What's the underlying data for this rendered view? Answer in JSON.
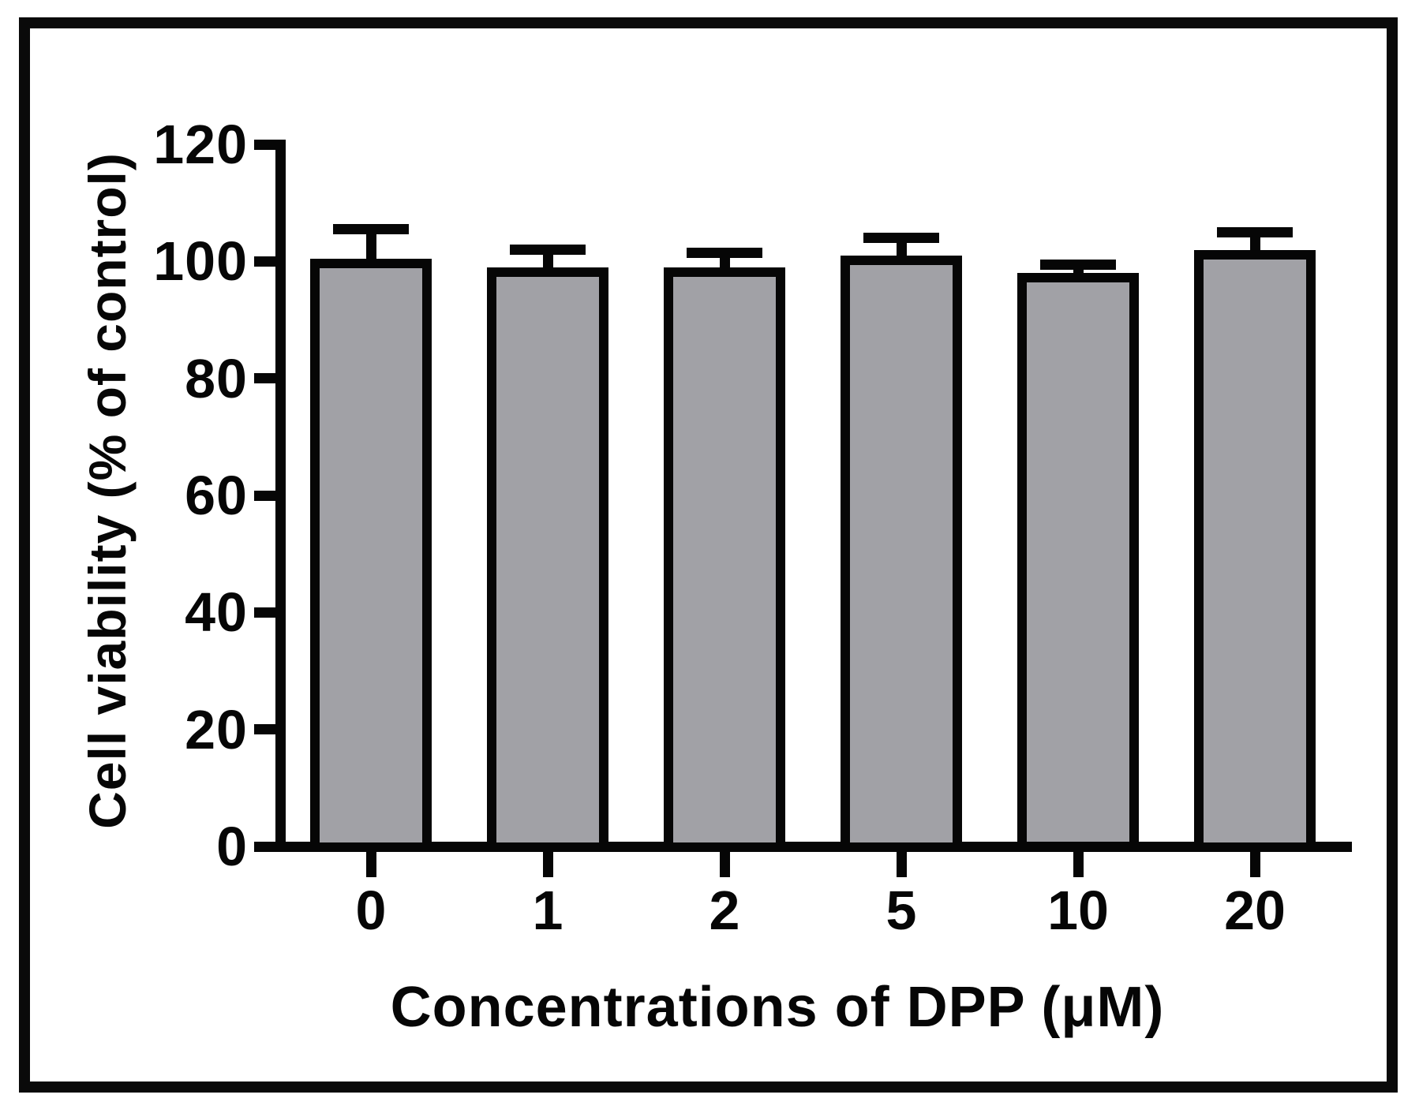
{
  "figure": {
    "description": "Bar chart of cell viability versus DPP concentration with SD error bars",
    "background_color": "#ffffff",
    "frame_color": "#0a0a0a"
  },
  "chart_data": {
    "type": "bar",
    "title": "",
    "categories": [
      "0",
      "1",
      "2",
      "5",
      "10",
      "20"
    ],
    "values": [
      100.5,
      99,
      99,
      101,
      98,
      102
    ],
    "errors": [
      5,
      3,
      2.5,
      3,
      1.5,
      3
    ],
    "error_direction": "up",
    "xlabel": "Concentrations of DPP (μM)",
    "ylabel": "Cell viability (% of control)",
    "ylim": [
      0,
      120
    ],
    "yticks": [
      0,
      20,
      40,
      60,
      80,
      100,
      120
    ],
    "grid": false,
    "legend": null,
    "bar_fill_color": "#a1a1a6",
    "bar_border_color": "#060606",
    "axis_color": "#060606"
  }
}
